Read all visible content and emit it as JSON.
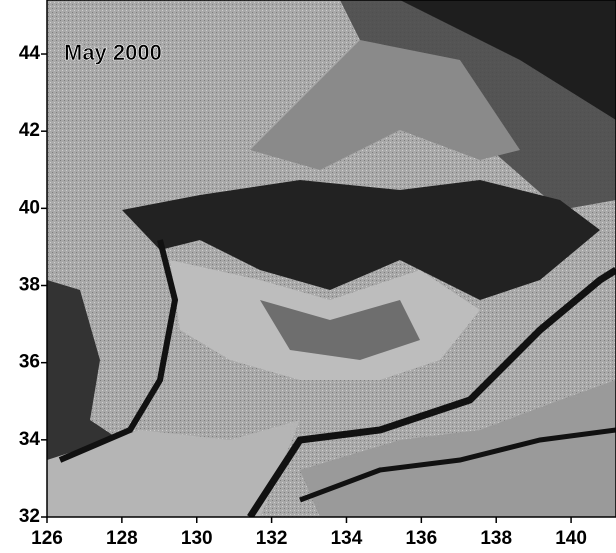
{
  "map": {
    "title": "May 2000",
    "xlim": [
      126,
      141.2
    ],
    "ylim": [
      32,
      45.4
    ],
    "xticks": [
      126,
      128,
      130,
      132,
      134,
      136,
      138,
      140
    ],
    "yticks": [
      32,
      34,
      36,
      38,
      40,
      42,
      44
    ]
  }
}
